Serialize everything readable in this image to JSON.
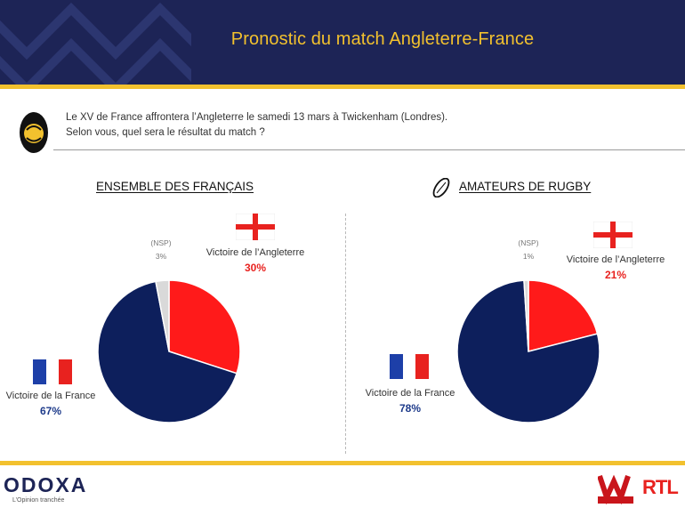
{
  "header": {
    "title": "Pronostic du match Angleterre-France",
    "bg_color": "#1d2456",
    "accent_color": "#f2c12e"
  },
  "question": {
    "line1": "Le XV de France affrontera l’Angleterre le samedi 13 mars à Twickenham (Londres).",
    "line2": "Selon vous, quel sera le résultat du match ?"
  },
  "chart_data": [
    {
      "type": "pie",
      "title": "ENSEMBLE DES FRANÇAIS",
      "slices": [
        {
          "label": "Victoire de l’Angleterre",
          "value": 30,
          "value_text": "30%",
          "color": "#ff1a1a"
        },
        {
          "label": "Victoire de la France",
          "value": 67,
          "value_text": "67%",
          "color": "#0d1f5c"
        },
        {
          "label": "(NSP)",
          "value": 3,
          "value_text": "3%",
          "color": "#d9d9d9"
        }
      ]
    },
    {
      "type": "pie",
      "title": "AMATEURS DE RUGBY",
      "slices": [
        {
          "label": "Victoire de l’Angleterre",
          "value": 21,
          "value_text": "21%",
          "color": "#ff1a1a"
        },
        {
          "label": "Victoire de la France",
          "value": 78,
          "value_text": "78%",
          "color": "#0d1f5c"
        },
        {
          "label": "(NSP)",
          "value": 1,
          "value_text": "1%",
          "color": "#d9d9d9"
        }
      ]
    }
  ],
  "footer": {
    "brand": "ODOXA",
    "tagline": "L’Opinion tranchée",
    "partner1": "WINAMAX",
    "partner2": "RTL"
  }
}
